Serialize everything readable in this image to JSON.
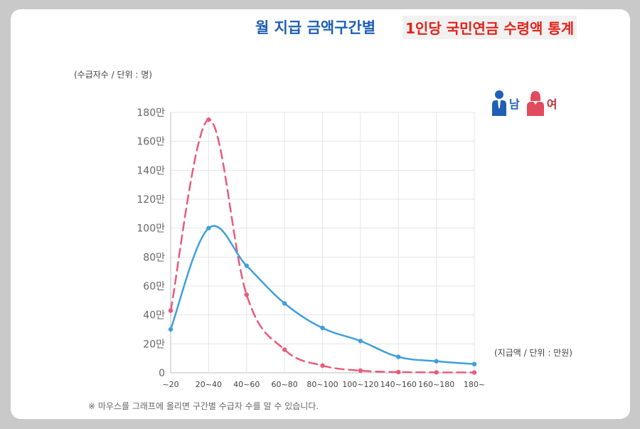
{
  "page": {
    "title_main": "월 지급 금액구간별",
    "title_sub": "1인당 국민연금 수령액 통계",
    "y_axis_caption": "(수급자수 / 단위 : 명)",
    "x_axis_caption": "(지급액 / 단위 : 만원)",
    "note": "※ 마우스를 그래프에 올리면 구간별 수급자 수를 알 수 있습니다.",
    "legend": {
      "male": "남",
      "female": "여"
    }
  },
  "colors": {
    "male": "#3f9fdc",
    "female": "#ea5a7a",
    "male_icon": "#1f5fb5",
    "female_icon": "#e24b5e",
    "grid": "#e5e5e5",
    "axis": "#bbbbbb"
  },
  "chart_data": {
    "type": "line",
    "categories": [
      "~20",
      "20~40",
      "40~60",
      "60~80",
      "80~100",
      "100~120",
      "140~160",
      "160~180",
      "180~"
    ],
    "y_tick_labels": [
      "0",
      "20만",
      "40만",
      "60만",
      "80만",
      "100만",
      "120만",
      "140만",
      "160만",
      "180만"
    ],
    "ylim": [
      0,
      1800000
    ],
    "y_tick_step": 200000,
    "grid": true,
    "legend_position": "top-right",
    "series": [
      {
        "name": "남",
        "line_style": "solid",
        "values": [
          300000,
          1000000,
          740000,
          480000,
          310000,
          220000,
          110000,
          80000,
          60000
        ]
      },
      {
        "name": "여",
        "line_style": "dashed",
        "values": [
          430000,
          1750000,
          540000,
          160000,
          50000,
          15000,
          5000,
          3000,
          2000
        ]
      }
    ]
  }
}
